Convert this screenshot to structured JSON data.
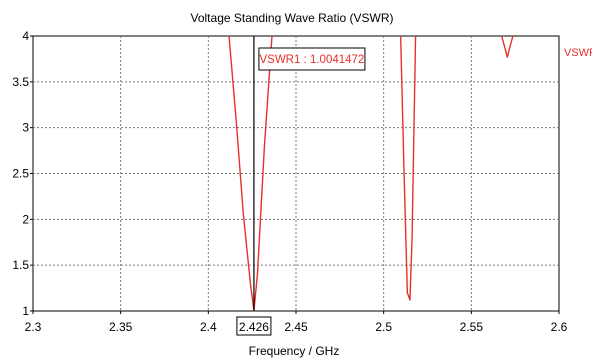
{
  "chart_data": {
    "type": "line",
    "title": "Voltage Standing Wave Ratio (VSWR)",
    "xlabel": "Frequency / GHz",
    "ylabel": "",
    "xlim": [
      2.3,
      2.6
    ],
    "ylim": [
      1,
      4
    ],
    "x_ticks": [
      "2.3",
      "2.35",
      "2.4",
      "2.45",
      "2.5",
      "2.55",
      "2.6"
    ],
    "y_ticks": [
      "1",
      "1.5",
      "2",
      "2.5",
      "3",
      "3.5",
      "4"
    ],
    "grid": true,
    "legend_position": "right",
    "colors": {
      "series": "#e8302a",
      "marker_line": "#000000",
      "grid": "#7a7a7a"
    },
    "series": [
      {
        "name": "VSWR1",
        "x": [
          2.4118,
          2.416,
          2.42,
          2.424,
          2.426,
          2.428,
          2.432,
          2.4363
        ],
        "y": [
          4.0,
          3.05,
          2.05,
          1.3,
          1.004,
          1.4,
          2.8,
          4.0
        ]
      },
      {
        "name": "VSWR1",
        "x": [
          2.5097,
          2.5115,
          2.5135,
          2.515,
          2.5162,
          2.5172,
          2.5182
        ],
        "y": [
          4.0,
          2.6,
          1.2,
          1.12,
          1.8,
          2.9,
          4.0
        ]
      },
      {
        "name": "VSWR1",
        "x": [
          2.5673,
          2.569,
          2.5705,
          2.572,
          2.5737
        ],
        "y": [
          4.0,
          3.88,
          3.77,
          3.88,
          4.0
        ]
      }
    ],
    "marker": {
      "x": 2.426,
      "x_label": "2.426",
      "label": "VSWR1 : 1.0041472",
      "value": 1.0041472
    }
  }
}
